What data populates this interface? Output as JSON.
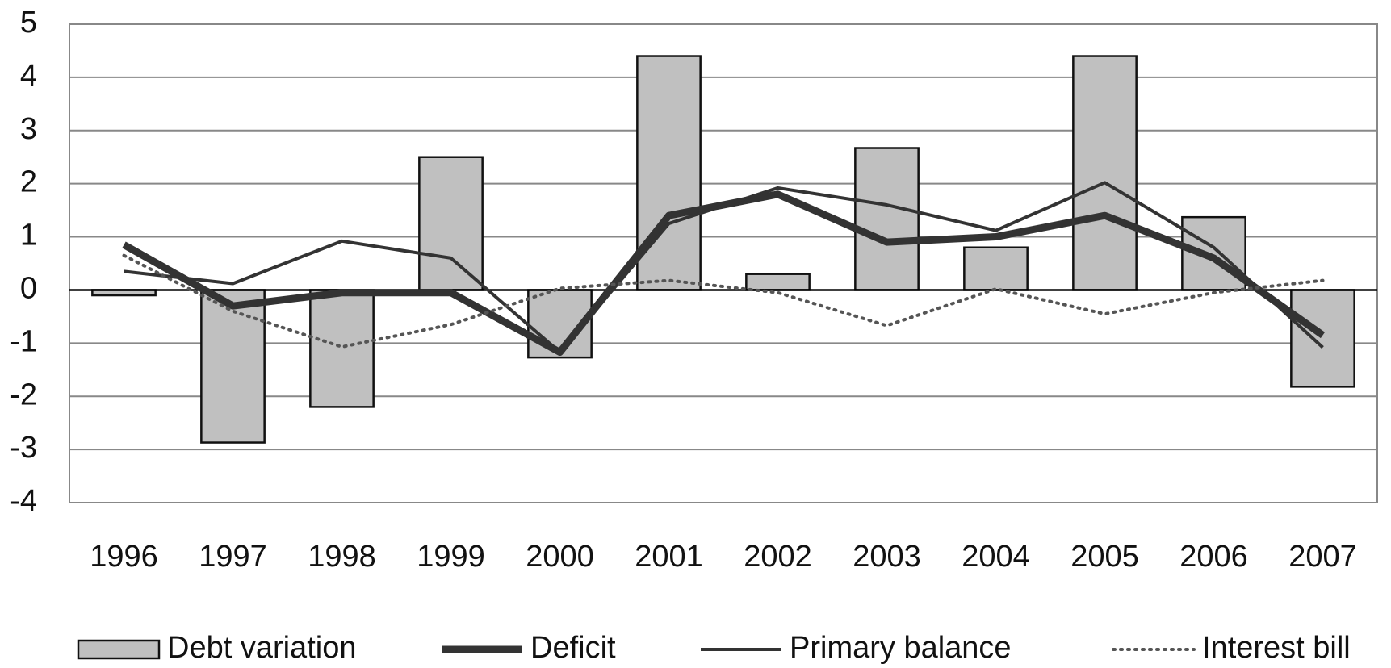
{
  "chart_data": {
    "type": "bar-line",
    "categories": [
      "1996",
      "1997",
      "1998",
      "1999",
      "2000",
      "2001",
      "2002",
      "2003",
      "2004",
      "2005",
      "2006",
      "2007"
    ],
    "series": [
      {
        "name": "Debt variation",
        "type": "bar",
        "color": "#c0c0c0",
        "values": [
          -0.1,
          -2.87,
          -2.2,
          2.5,
          -1.27,
          4.4,
          0.3,
          2.67,
          0.8,
          4.4,
          1.37,
          -1.82
        ]
      },
      {
        "name": "Deficit",
        "type": "line",
        "color": "#333333",
        "values": [
          0.85,
          -0.3,
          -0.05,
          -0.05,
          -1.17,
          1.4,
          1.8,
          0.9,
          1.0,
          1.4,
          0.6,
          -0.85
        ]
      },
      {
        "name": "Primary balance",
        "type": "line",
        "color": "#333333",
        "values": [
          0.35,
          0.12,
          0.92,
          0.6,
          -1.17,
          1.25,
          1.92,
          1.6,
          1.12,
          2.02,
          0.8,
          -1.08
        ]
      },
      {
        "name": "Interest bill",
        "type": "dotted",
        "color": "#555555",
        "values": [
          0.65,
          -0.4,
          -1.07,
          -0.65,
          0.03,
          0.18,
          -0.05,
          -0.67,
          0.02,
          -0.45,
          -0.05,
          0.18
        ]
      }
    ],
    "ylim": [
      -4,
      5
    ],
    "yticks": [
      -4,
      -3,
      -2,
      -1,
      0,
      1,
      2,
      3,
      4,
      5
    ],
    "grid": true
  }
}
